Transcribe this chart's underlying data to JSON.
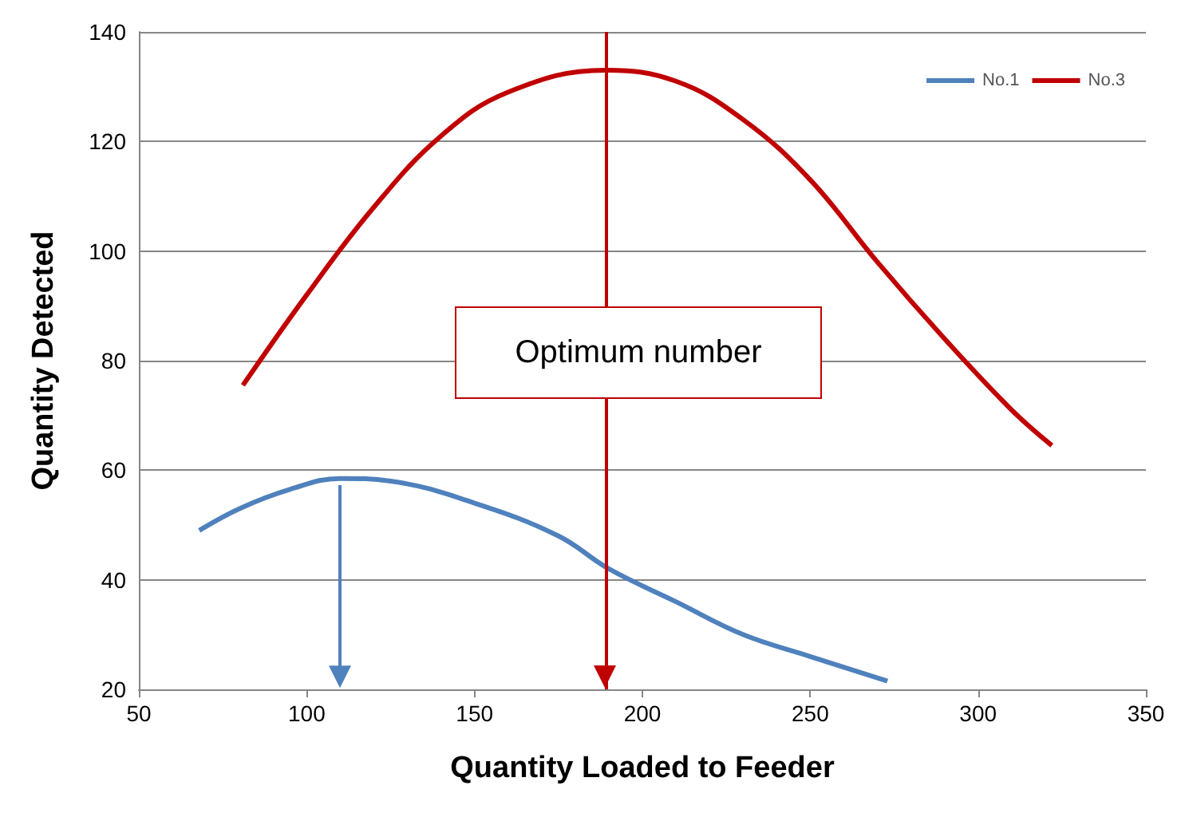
{
  "chart_data": {
    "type": "line",
    "xlabel": "Quantity Loaded to Feeder",
    "ylabel": "Quantity Detected",
    "xlim": [
      50,
      350
    ],
    "xticks": [
      50,
      100,
      150,
      200,
      250,
      300,
      350
    ],
    "ylim": [
      20,
      140
    ],
    "yticks": [
      20,
      40,
      60,
      80,
      100,
      120,
      140
    ],
    "grid": "y",
    "legend": "top right",
    "marker": "none",
    "line_style": "solid",
    "annotations": [
      "Optimum number"
    ],
    "ref_lines": [
      {
        "axis": "x",
        "value": 189,
        "color": "#c00000"
      }
    ],
    "series": [
      {
        "name": "No.1",
        "color": "#4f81bd",
        "x": [
          68,
          80,
          95,
          110,
          125,
          150,
          175,
          190,
          210,
          230,
          250,
          273
        ],
        "values": [
          49,
          53,
          56.5,
          58.5,
          58,
          54,
          48,
          42,
          36,
          30,
          26,
          21.5
        ]
      },
      {
        "name": "No.3",
        "color": "#c00000",
        "x": [
          81,
          100,
          120,
          140,
          160,
          189,
          210,
          230,
          250,
          270,
          290,
          310,
          322
        ],
        "values": [
          75.5,
          92,
          108,
          121,
          129,
          133,
          131,
          124,
          113,
          98,
          84,
          71,
          64.5
        ]
      }
    ]
  }
}
